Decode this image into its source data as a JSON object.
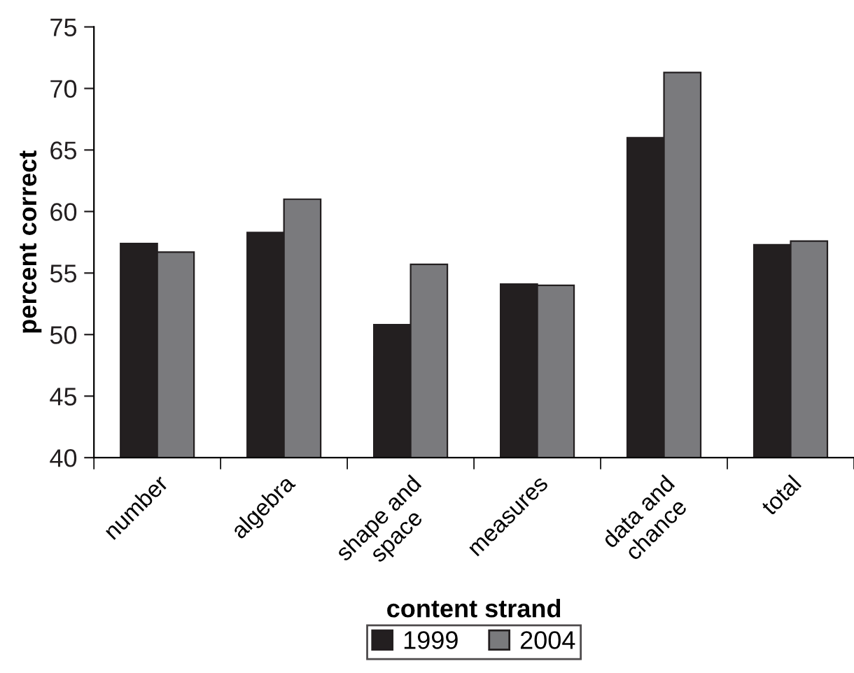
{
  "chart_data": {
    "type": "bar",
    "categories": [
      "number",
      "algebra",
      "shape and\nspace",
      "measures",
      "data and\nchance",
      "total"
    ],
    "series": [
      {
        "name": "1999",
        "color": "#231f20",
        "values": [
          57.4,
          58.3,
          50.8,
          54.1,
          66.0,
          57.3
        ]
      },
      {
        "name": "2004",
        "color": "#7a7a7d",
        "values": [
          56.7,
          61.0,
          55.7,
          54.0,
          71.3,
          57.6
        ]
      }
    ],
    "xlabel": "content strand",
    "ylabel": "percent correct",
    "ylim": [
      40,
      75
    ],
    "yticks": [
      40,
      45,
      50,
      55,
      60,
      65,
      70,
      75
    ],
    "grid": false,
    "legend": "bottom"
  }
}
